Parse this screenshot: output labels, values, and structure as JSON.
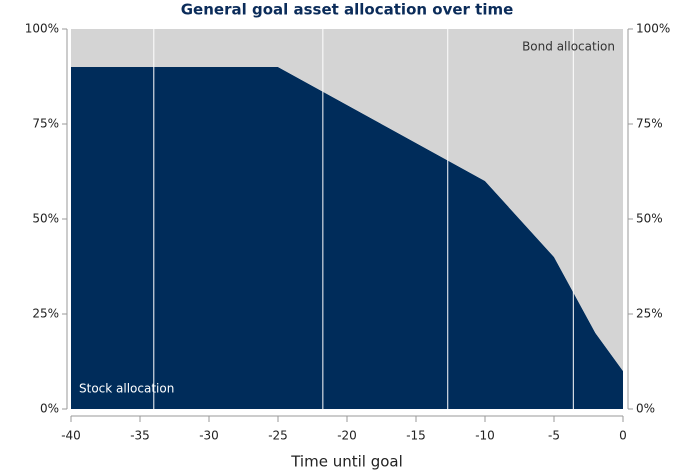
{
  "chart_data": {
    "type": "stacked_area",
    "title": "General goal asset allocation over time",
    "x_label": "Time until goal",
    "x": [
      -40,
      -25,
      -10,
      -5,
      -2,
      0
    ],
    "series": [
      {
        "name": "Stock allocation",
        "color": "#002c5a",
        "values": [
          90,
          90,
          60,
          40,
          20,
          10
        ]
      },
      {
        "name": "Bond allocation",
        "color": "#d4d4d4",
        "values": [
          10,
          10,
          40,
          60,
          80,
          90
        ]
      }
    ],
    "vlines": [
      -34,
      -21.75,
      -12.7,
      -3.6
    ],
    "xlim": [
      -40,
      0
    ],
    "xticks": [
      -40,
      -35,
      -30,
      -25,
      -20,
      -15,
      -10,
      -5,
      0
    ],
    "ylim": [
      0,
      100
    ],
    "yticks": [
      {
        "value": 0,
        "label": "0%"
      },
      {
        "value": 25,
        "label": "25%"
      },
      {
        "value": 50,
        "label": "50%"
      },
      {
        "value": 75,
        "label": "75%"
      },
      {
        "value": 100,
        "label": "100%"
      }
    ],
    "y2lim": [
      0,
      100
    ],
    "y2ticks": [
      {
        "value": 0,
        "label": "0%"
      },
      {
        "value": 25,
        "label": "25%"
      },
      {
        "value": 50,
        "label": "50%"
      },
      {
        "value": 75,
        "label": "75%"
      },
      {
        "value": 100,
        "label": "100%"
      }
    ]
  }
}
